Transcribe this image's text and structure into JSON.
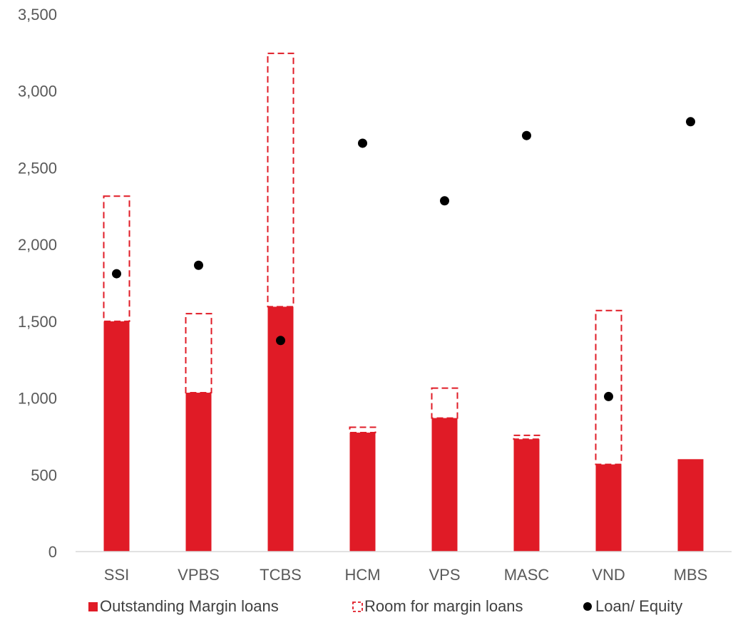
{
  "chart_data": {
    "type": "bar",
    "categories": [
      "SSI",
      "VPBS",
      "TCBS",
      "HCM",
      "VPS",
      "MASC",
      "VND",
      "MBS"
    ],
    "series": [
      {
        "name": "Outstanding Margin loans",
        "kind": "bar-solid",
        "color": "#e01b26",
        "values": [
          1500,
          1035,
          1595,
          775,
          870,
          732,
          568,
          602
        ]
      },
      {
        "name": "Room for margin loans",
        "kind": "bar-dashed-outline",
        "color": "#e01b26",
        "values": [
          2315,
          1550,
          3245,
          810,
          1065,
          757,
          1570,
          602
        ]
      },
      {
        "name": "Loan/ Equity",
        "kind": "marker",
        "color": "#000000",
        "values": [
          1810,
          1865,
          1375,
          2660,
          2285,
          2710,
          1010,
          2800
        ]
      }
    ],
    "ylim": [
      0,
      3500
    ],
    "yticks": [
      "0",
      "500",
      "1,000",
      "1,500",
      "2,000",
      "2,500",
      "3,000",
      "3,500"
    ],
    "ytick_values": [
      0,
      500,
      1000,
      1500,
      2000,
      2500,
      3000,
      3500
    ],
    "grid": false,
    "legend_position": "bottom",
    "xlabel": "",
    "ylabel": "",
    "title": ""
  }
}
